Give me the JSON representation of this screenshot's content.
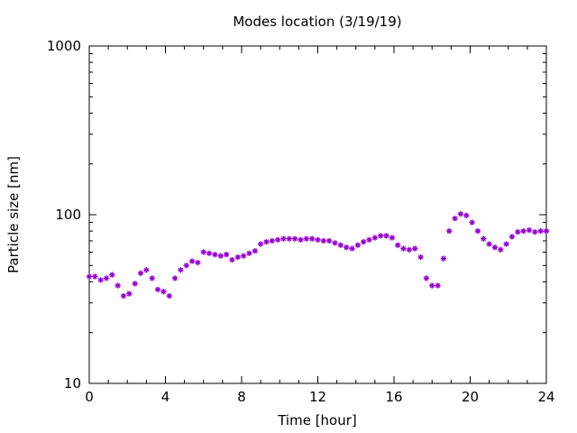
{
  "chart_data": {
    "type": "scatter",
    "title": "Modes location (3/19/19)",
    "xlabel": "Time [hour]",
    "ylabel": "Particle size [nm]",
    "xlim": [
      0,
      24
    ],
    "ylim": [
      10,
      1000
    ],
    "yscale": "log",
    "grid": false,
    "legend": "none",
    "xticks": [
      0,
      4,
      8,
      12,
      16,
      20,
      24
    ],
    "xtick_labels": [
      "0",
      "4",
      "8",
      "12",
      "16",
      "20",
      "24"
    ],
    "yticks": [
      10,
      100,
      1000
    ],
    "ytick_labels": [
      "10",
      "100",
      "1000"
    ],
    "marker_color": "#9400d3",
    "marker": "asterisk",
    "series": [
      {
        "x": [
          0.0,
          0.3,
          0.6,
          0.9,
          1.2,
          1.5,
          1.8,
          2.1,
          2.4,
          2.7,
          3.0,
          3.3,
          3.6,
          3.9,
          4.2,
          4.5,
          4.8,
          5.1,
          5.4,
          5.7,
          6.0,
          6.3,
          6.6,
          6.9,
          7.2,
          7.5,
          7.8,
          8.1,
          8.4,
          8.7,
          9.0,
          9.3,
          9.6,
          9.9,
          10.2,
          10.5,
          10.8,
          11.1,
          11.4,
          11.7,
          12.0,
          12.3,
          12.6,
          12.9,
          13.2,
          13.5,
          13.8,
          14.1,
          14.4,
          14.7,
          15.0,
          15.3,
          15.6,
          15.9,
          16.2,
          16.5,
          16.8,
          17.1,
          17.4,
          17.7,
          18.0,
          18.3,
          18.6,
          18.9,
          19.2,
          19.5,
          19.8,
          20.1,
          20.4,
          20.7,
          21.0,
          21.3,
          21.6,
          21.9,
          22.2,
          22.5,
          22.8,
          23.1,
          23.4,
          23.7,
          24.0
        ],
        "y": [
          43,
          43,
          41,
          42,
          44,
          38,
          33,
          34,
          39,
          45,
          47,
          42,
          36,
          35,
          33,
          42,
          47,
          50,
          53,
          52,
          60,
          59,
          58,
          57,
          58,
          54,
          56,
          57,
          59,
          61,
          67,
          69,
          70,
          71,
          72,
          72,
          72,
          71,
          72,
          72,
          71,
          70,
          70,
          68,
          66,
          64,
          63,
          66,
          69,
          71,
          73,
          75,
          75,
          73,
          66,
          63,
          62,
          63,
          56,
          42,
          38,
          38,
          55,
          80,
          95,
          101,
          99,
          90,
          80,
          72,
          67,
          64,
          62,
          67,
          74,
          79,
          80,
          81,
          79,
          80,
          80
        ]
      }
    ]
  }
}
